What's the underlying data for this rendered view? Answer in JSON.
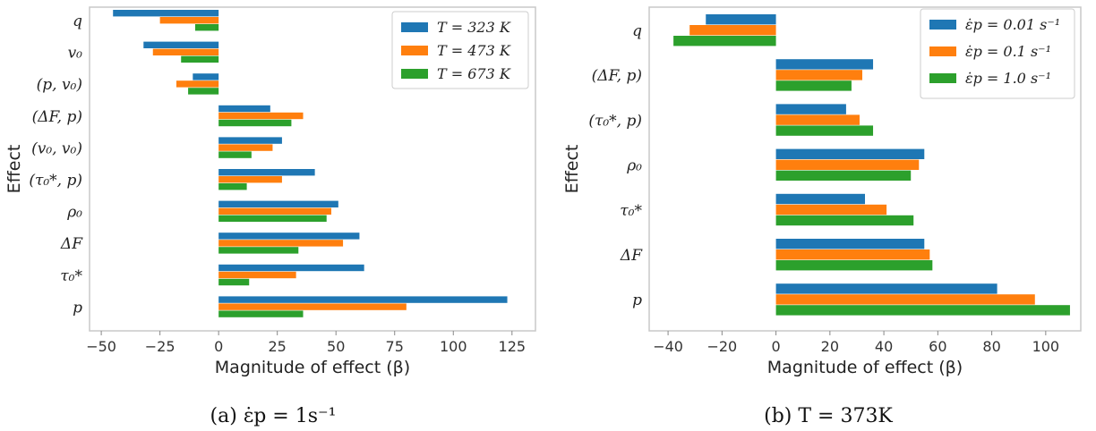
{
  "colors": {
    "blue": "#1f77b4",
    "orange": "#ff7f0e",
    "green": "#2ca02c"
  },
  "chart_data": [
    {
      "type": "bar",
      "orientation": "horizontal",
      "caption": "(a) ε̇p = 1s⁻¹",
      "xlabel": "Magnitude of effect (β)",
      "ylabel": "Effect",
      "xlim": [
        -55,
        135
      ],
      "xticks": [
        -50,
        -25,
        0,
        25,
        50,
        75,
        100,
        125
      ],
      "grid": false,
      "legend_position": "top-right",
      "categories": [
        "q",
        "v₀",
        "(p, v₀)",
        "(ΔF, p)",
        "(v₀, v₀)",
        "(τ₀*, p)",
        "ρ₀",
        "ΔF",
        "τ₀*",
        "p"
      ],
      "series": [
        {
          "name": "T = 323 K",
          "color": "#1f77b4",
          "values": [
            -45,
            -32,
            -11,
            22,
            27,
            41,
            51,
            60,
            62,
            123
          ]
        },
        {
          "name": "T = 473 K",
          "color": "#ff7f0e",
          "values": [
            -25,
            -28,
            -18,
            36,
            23,
            27,
            48,
            53,
            33,
            80
          ]
        },
        {
          "name": "T = 673 K",
          "color": "#2ca02c",
          "values": [
            -10,
            -16,
            -13,
            31,
            14,
            12,
            46,
            34,
            13,
            36
          ]
        }
      ]
    },
    {
      "type": "bar",
      "orientation": "horizontal",
      "caption": "(b) T = 373K",
      "xlabel": "Magnitude of effect (β)",
      "ylabel": "Effect",
      "xlim": [
        -47,
        113
      ],
      "xticks": [
        -40,
        -20,
        0,
        20,
        40,
        60,
        80,
        100
      ],
      "grid": false,
      "legend_position": "top-right",
      "categories": [
        "q",
        "(ΔF, p)",
        "(τ₀*, p)",
        "ρ₀",
        "τ₀*",
        "ΔF",
        "p"
      ],
      "series": [
        {
          "name": "ε̇p = 0.01 s⁻¹",
          "color": "#1f77b4",
          "values": [
            -26,
            36,
            26,
            55,
            33,
            55,
            82
          ]
        },
        {
          "name": "ε̇p = 0.1 s⁻¹",
          "color": "#ff7f0e",
          "values": [
            -32,
            32,
            31,
            53,
            41,
            57,
            96
          ]
        },
        {
          "name": "ε̇p = 1.0 s⁻¹",
          "color": "#2ca02c",
          "values": [
            -38,
            28,
            36,
            50,
            51,
            58,
            109
          ]
        }
      ]
    }
  ]
}
